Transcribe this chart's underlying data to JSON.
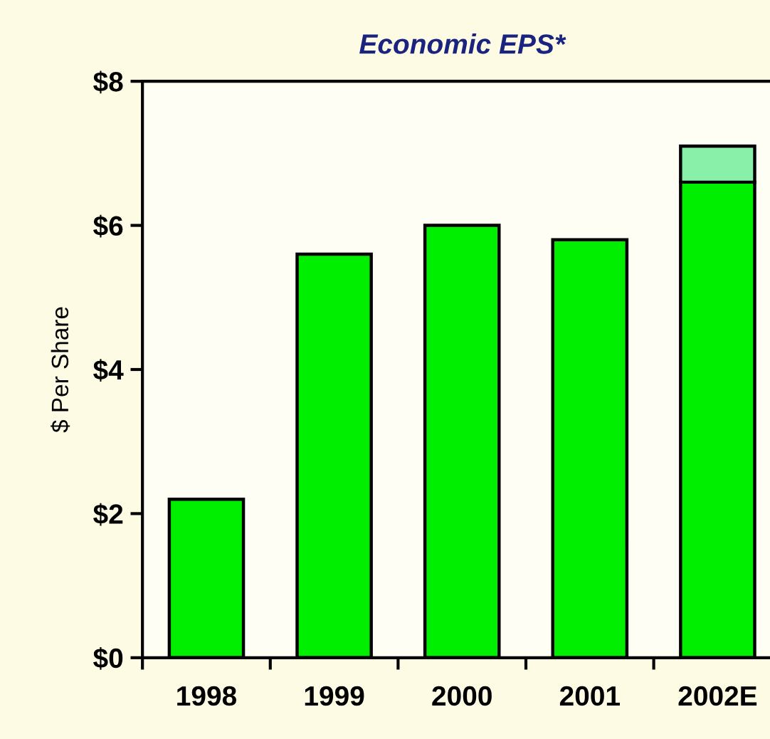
{
  "chart_data": {
    "type": "bar",
    "title": "Economic EPS*",
    "ylabel": "$ Per Share",
    "categories": [
      "1998",
      "1999",
      "2000",
      "2001",
      "2002E"
    ],
    "series": [
      {
        "color": "#00ee00",
        "values": [
          2.2,
          5.6,
          6.0,
          5.8,
          6.6
        ]
      },
      {
        "color": "#88f0a8",
        "values": [
          null,
          null,
          null,
          null,
          0.5
        ]
      }
    ],
    "stacked": true,
    "ylim": [
      0,
      8
    ],
    "yticks": [
      {
        "value": 0,
        "label": "$0"
      },
      {
        "value": 2,
        "label": "$2"
      },
      {
        "value": 4,
        "label": "$4"
      },
      {
        "value": 6,
        "label": "$6"
      },
      {
        "value": 8,
        "label": "$8"
      }
    ],
    "grid": false,
    "legend": false
  }
}
